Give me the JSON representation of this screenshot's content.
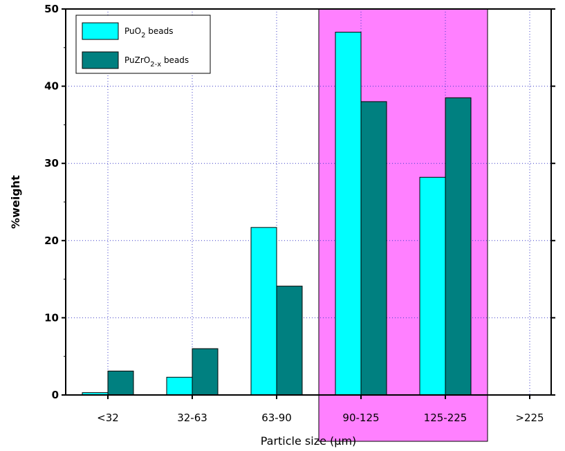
{
  "chart_data": {
    "type": "bar",
    "xlabel": "Particle size (µm)",
    "ylabel": "%weight",
    "categories": [
      "<32",
      "32-63",
      "63-90",
      "90-125",
      "125-225",
      ">225"
    ],
    "series": [
      {
        "name": "PuO2 beads",
        "values": [
          0.3,
          2.3,
          21.7,
          47.0,
          28.2,
          0
        ],
        "color": "#00ffff"
      },
      {
        "name": "PuZrO2-x beads",
        "values": [
          3.1,
          6.0,
          14.1,
          38.0,
          38.5,
          0
        ],
        "color": "#008080"
      }
    ],
    "ylim": [
      0,
      50
    ],
    "yticks": [
      0,
      10,
      20,
      30,
      40,
      50
    ],
    "grid": true,
    "legend_position": "top-left",
    "legend": {
      "items": [
        {
          "base": "PuO",
          "sub": "2",
          "suffix": " beads"
        },
        {
          "base": "PuZrO",
          "sub": "2-x",
          "suffix": " beads"
        }
      ]
    },
    "highlight": {
      "categories": [
        "90-125",
        "125-225"
      ],
      "color": "#ff80ff"
    }
  }
}
